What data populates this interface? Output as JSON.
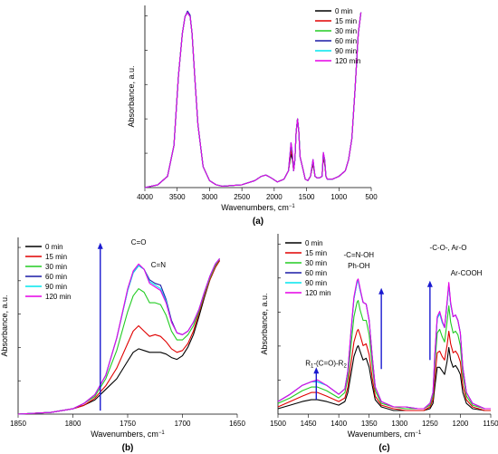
{
  "legend_labels": [
    "0 min",
    "15 min",
    "30 min",
    "60 min",
    "90 min",
    "120 min"
  ],
  "colors": {
    "0 min": "#000000",
    "15 min": "#e00000",
    "30 min": "#22cc22",
    "60 min": "#1a1aa6",
    "90 min": "#00e5ee",
    "120 min": "#e600e6",
    "arrow": "#1a1ad0"
  },
  "chart_data": [
    {
      "id": "a",
      "type": "line",
      "caption": "(a)",
      "xlabel": "Wavenumbers, cm",
      "xlabel_sup": "−1",
      "ylabel": "Absorbance, a.u.",
      "xlim": [
        4000,
        500
      ],
      "ylim": [
        0,
        1.3
      ],
      "xticks": [
        4000,
        3500,
        3000,
        2500,
        2000,
        1500,
        1000,
        500
      ],
      "legend_position": "top-right",
      "x": [
        4000,
        3800,
        3650,
        3550,
        3480,
        3420,
        3380,
        3340,
        3300,
        3270,
        3230,
        3180,
        3100,
        3000,
        2900,
        2800,
        2500,
        2300,
        2200,
        2130,
        2050,
        1950,
        1850,
        1780,
        1740,
        1720,
        1700,
        1680,
        1660,
        1640,
        1620,
        1600,
        1560,
        1520,
        1480,
        1440,
        1400,
        1370,
        1340,
        1300,
        1260,
        1240,
        1220,
        1200,
        1180,
        1100,
        1000,
        900,
        850,
        800,
        750,
        700,
        660
      ],
      "series": [
        {
          "name": "0 min",
          "values": [
            0.0,
            0.02,
            0.08,
            0.3,
            0.8,
            1.1,
            1.22,
            1.25,
            1.22,
            1.1,
            0.8,
            0.45,
            0.15,
            0.05,
            0.02,
            0.01,
            0.02,
            0.05,
            0.08,
            0.09,
            0.07,
            0.04,
            0.06,
            0.12,
            0.24,
            0.2,
            0.12,
            0.2,
            0.4,
            0.49,
            0.4,
            0.22,
            0.14,
            0.06,
            0.05,
            0.08,
            0.17,
            0.08,
            0.07,
            0.07,
            0.08,
            0.22,
            0.17,
            0.08,
            0.06,
            0.06,
            0.08,
            0.12,
            0.2,
            0.35,
            0.7,
            1.1,
            1.25
          ]
        },
        {
          "name": "15 min",
          "values": [
            0.0,
            0.02,
            0.08,
            0.3,
            0.8,
            1.1,
            1.22,
            1.25,
            1.22,
            1.1,
            0.8,
            0.45,
            0.15,
            0.05,
            0.02,
            0.01,
            0.02,
            0.05,
            0.08,
            0.09,
            0.07,
            0.04,
            0.06,
            0.12,
            0.27,
            0.22,
            0.12,
            0.2,
            0.4,
            0.49,
            0.4,
            0.22,
            0.14,
            0.06,
            0.05,
            0.08,
            0.18,
            0.08,
            0.07,
            0.07,
            0.08,
            0.23,
            0.18,
            0.08,
            0.06,
            0.06,
            0.08,
            0.12,
            0.2,
            0.35,
            0.7,
            1.1,
            1.25
          ]
        },
        {
          "name": "30 min",
          "values": [
            0.0,
            0.02,
            0.08,
            0.3,
            0.8,
            1.1,
            1.22,
            1.25,
            1.22,
            1.1,
            0.8,
            0.45,
            0.15,
            0.05,
            0.02,
            0.01,
            0.02,
            0.05,
            0.08,
            0.09,
            0.07,
            0.04,
            0.06,
            0.12,
            0.3,
            0.24,
            0.12,
            0.2,
            0.4,
            0.49,
            0.4,
            0.22,
            0.14,
            0.06,
            0.05,
            0.08,
            0.19,
            0.08,
            0.07,
            0.07,
            0.08,
            0.24,
            0.19,
            0.08,
            0.06,
            0.06,
            0.08,
            0.12,
            0.2,
            0.35,
            0.7,
            1.1,
            1.25
          ]
        },
        {
          "name": "60 min",
          "values": [
            0.0,
            0.02,
            0.08,
            0.3,
            0.8,
            1.1,
            1.22,
            1.26,
            1.23,
            1.1,
            0.8,
            0.45,
            0.15,
            0.05,
            0.02,
            0.01,
            0.02,
            0.05,
            0.08,
            0.09,
            0.07,
            0.04,
            0.06,
            0.12,
            0.32,
            0.25,
            0.12,
            0.2,
            0.4,
            0.49,
            0.4,
            0.22,
            0.14,
            0.06,
            0.05,
            0.08,
            0.2,
            0.08,
            0.07,
            0.07,
            0.08,
            0.25,
            0.2,
            0.08,
            0.06,
            0.06,
            0.08,
            0.12,
            0.2,
            0.35,
            0.7,
            1.1,
            1.25
          ]
        },
        {
          "name": "90 min",
          "values": [
            0.0,
            0.02,
            0.08,
            0.3,
            0.8,
            1.1,
            1.22,
            1.25,
            1.22,
            1.1,
            0.8,
            0.45,
            0.15,
            0.05,
            0.02,
            0.01,
            0.02,
            0.05,
            0.08,
            0.09,
            0.07,
            0.04,
            0.06,
            0.12,
            0.32,
            0.25,
            0.12,
            0.2,
            0.4,
            0.49,
            0.4,
            0.22,
            0.14,
            0.06,
            0.05,
            0.08,
            0.2,
            0.08,
            0.07,
            0.07,
            0.08,
            0.25,
            0.2,
            0.08,
            0.06,
            0.06,
            0.08,
            0.12,
            0.2,
            0.35,
            0.7,
            1.1,
            1.25
          ]
        },
        {
          "name": "120 min",
          "values": [
            0.0,
            0.02,
            0.08,
            0.3,
            0.8,
            1.1,
            1.22,
            1.25,
            1.22,
            1.1,
            0.8,
            0.45,
            0.15,
            0.05,
            0.02,
            0.01,
            0.02,
            0.05,
            0.08,
            0.09,
            0.07,
            0.04,
            0.06,
            0.12,
            0.32,
            0.25,
            0.12,
            0.2,
            0.4,
            0.49,
            0.4,
            0.22,
            0.14,
            0.06,
            0.05,
            0.08,
            0.2,
            0.08,
            0.07,
            0.07,
            0.08,
            0.25,
            0.2,
            0.08,
            0.06,
            0.06,
            0.08,
            0.12,
            0.2,
            0.35,
            0.7,
            1.1,
            1.25
          ]
        }
      ]
    },
    {
      "id": "b",
      "type": "line",
      "caption": "(b)",
      "xlabel": "Wavenumbers, cm",
      "xlabel_sup": "−1",
      "ylabel": "Absorbance, a.u.",
      "xlim": [
        1850,
        1650
      ],
      "ylim": [
        0,
        1.0
      ],
      "xticks": [
        1850,
        1800,
        1750,
        1700,
        1650
      ],
      "legend_position": "top-left",
      "annotations": [
        {
          "text": "C=O",
          "x": 1740,
          "y": 0.96
        },
        {
          "text": "C=N",
          "x": 1722,
          "y": 0.83
        }
      ],
      "arrow": {
        "x": 1775,
        "y_from": 0.02,
        "y_to": 0.96
      },
      "x": [
        1850,
        1820,
        1800,
        1790,
        1780,
        1770,
        1760,
        1750,
        1745,
        1740,
        1735,
        1730,
        1725,
        1720,
        1715,
        1710,
        1705,
        1700,
        1695,
        1690,
        1685,
        1680,
        1675,
        1670,
        1666
      ],
      "series": [
        {
          "name": "0 min",
          "values": [
            0.0,
            0.01,
            0.03,
            0.05,
            0.08,
            0.14,
            0.2,
            0.3,
            0.35,
            0.37,
            0.36,
            0.35,
            0.35,
            0.35,
            0.34,
            0.32,
            0.31,
            0.33,
            0.38,
            0.45,
            0.55,
            0.66,
            0.76,
            0.83,
            0.87
          ]
        },
        {
          "name": "15 min",
          "values": [
            0.0,
            0.01,
            0.03,
            0.05,
            0.09,
            0.16,
            0.26,
            0.4,
            0.47,
            0.5,
            0.47,
            0.44,
            0.45,
            0.44,
            0.41,
            0.37,
            0.35,
            0.36,
            0.4,
            0.47,
            0.57,
            0.67,
            0.76,
            0.83,
            0.87
          ]
        },
        {
          "name": "30 min",
          "values": [
            0.0,
            0.01,
            0.03,
            0.06,
            0.1,
            0.2,
            0.36,
            0.58,
            0.67,
            0.71,
            0.69,
            0.63,
            0.63,
            0.62,
            0.56,
            0.47,
            0.42,
            0.42,
            0.45,
            0.5,
            0.58,
            0.68,
            0.77,
            0.84,
            0.88
          ]
        },
        {
          "name": "60 min",
          "values": [
            0.0,
            0.01,
            0.03,
            0.06,
            0.11,
            0.22,
            0.43,
            0.7,
            0.8,
            0.84,
            0.82,
            0.76,
            0.74,
            0.73,
            0.65,
            0.53,
            0.46,
            0.45,
            0.47,
            0.52,
            0.59,
            0.69,
            0.78,
            0.85,
            0.88
          ]
        },
        {
          "name": "90 min",
          "values": [
            0.0,
            0.01,
            0.03,
            0.06,
            0.11,
            0.22,
            0.43,
            0.7,
            0.8,
            0.84,
            0.82,
            0.75,
            0.73,
            0.71,
            0.64,
            0.52,
            0.46,
            0.45,
            0.47,
            0.52,
            0.59,
            0.69,
            0.78,
            0.85,
            0.88
          ]
        },
        {
          "name": "120 min",
          "values": [
            0.0,
            0.01,
            0.03,
            0.06,
            0.11,
            0.22,
            0.43,
            0.71,
            0.81,
            0.85,
            0.82,
            0.74,
            0.72,
            0.7,
            0.63,
            0.52,
            0.46,
            0.45,
            0.47,
            0.52,
            0.59,
            0.69,
            0.78,
            0.85,
            0.88
          ]
        }
      ]
    },
    {
      "id": "c",
      "type": "line",
      "caption": "(c)",
      "xlabel": "Wavenumbers, cm",
      "xlabel_sup": "−1",
      "ylabel": "Absorbance, a.u.",
      "xlim": [
        1500,
        1150
      ],
      "ylim": [
        0,
        1.0
      ],
      "xticks": [
        1500,
        1450,
        1400,
        1350,
        1300,
        1250,
        1200,
        1150
      ],
      "legend_position": "top-left",
      "annotations": [
        {
          "text": "-C=N-OH",
          "x": 1367,
          "y": 0.87
        },
        {
          "text": "Ph-OH",
          "x": 1367,
          "y": 0.81
        },
        {
          "text": "-C-O-, Ar-O",
          "x": 1220,
          "y": 0.91
        },
        {
          "text": "Ar-COOH",
          "x": 1190,
          "y": 0.77
        },
        {
          "text": "R",
          "x": 1455,
          "y": 0.27,
          "formula": true
        }
      ],
      "arrows": [
        {
          "x": 1437,
          "y_from": 0.08,
          "y_to": 0.25
        },
        {
          "x": 1330,
          "y_from": 0.25,
          "y_to": 0.69
        },
        {
          "x": 1250,
          "y_from": 0.3,
          "y_to": 0.73
        }
      ],
      "x": [
        1500,
        1480,
        1460,
        1445,
        1435,
        1420,
        1400,
        1390,
        1385,
        1380,
        1375,
        1370,
        1368,
        1365,
        1360,
        1355,
        1350,
        1345,
        1340,
        1330,
        1310,
        1290,
        1270,
        1260,
        1250,
        1245,
        1242,
        1238,
        1234,
        1230,
        1226,
        1222,
        1219,
        1216,
        1212,
        1208,
        1204,
        1200,
        1196,
        1190,
        1180,
        1160,
        1150
      ],
      "series": [
        {
          "name": "0 min",
          "values": [
            0.03,
            0.05,
            0.07,
            0.08,
            0.08,
            0.07,
            0.05,
            0.07,
            0.12,
            0.22,
            0.32,
            0.37,
            0.38,
            0.35,
            0.3,
            0.31,
            0.26,
            0.16,
            0.08,
            0.04,
            0.02,
            0.02,
            0.02,
            0.02,
            0.03,
            0.06,
            0.15,
            0.26,
            0.26,
            0.24,
            0.22,
            0.29,
            0.37,
            0.3,
            0.26,
            0.27,
            0.25,
            0.22,
            0.12,
            0.06,
            0.03,
            0.02,
            0.02
          ]
        },
        {
          "name": "15 min",
          "values": [
            0.04,
            0.07,
            0.1,
            0.12,
            0.12,
            0.1,
            0.07,
            0.09,
            0.15,
            0.28,
            0.4,
            0.46,
            0.47,
            0.44,
            0.38,
            0.39,
            0.33,
            0.2,
            0.1,
            0.05,
            0.03,
            0.02,
            0.02,
            0.02,
            0.04,
            0.08,
            0.2,
            0.34,
            0.35,
            0.32,
            0.3,
            0.38,
            0.46,
            0.39,
            0.34,
            0.35,
            0.33,
            0.29,
            0.16,
            0.08,
            0.04,
            0.02,
            0.02
          ]
        },
        {
          "name": "30 min",
          "values": [
            0.06,
            0.09,
            0.13,
            0.15,
            0.15,
            0.13,
            0.09,
            0.12,
            0.2,
            0.38,
            0.54,
            0.62,
            0.63,
            0.58,
            0.52,
            0.52,
            0.44,
            0.27,
            0.13,
            0.06,
            0.04,
            0.03,
            0.03,
            0.03,
            0.05,
            0.1,
            0.27,
            0.45,
            0.47,
            0.43,
            0.4,
            0.51,
            0.6,
            0.51,
            0.45,
            0.46,
            0.44,
            0.38,
            0.22,
            0.1,
            0.05,
            0.03,
            0.03
          ]
        },
        {
          "name": "60 min",
          "values": [
            0.07,
            0.11,
            0.16,
            0.18,
            0.18,
            0.16,
            0.11,
            0.14,
            0.24,
            0.45,
            0.64,
            0.73,
            0.74,
            0.69,
            0.62,
            0.61,
            0.52,
            0.32,
            0.15,
            0.07,
            0.04,
            0.04,
            0.03,
            0.03,
            0.06,
            0.12,
            0.32,
            0.53,
            0.56,
            0.51,
            0.48,
            0.61,
            0.72,
            0.61,
            0.54,
            0.55,
            0.52,
            0.45,
            0.26,
            0.12,
            0.06,
            0.03,
            0.03
          ]
        },
        {
          "name": "90 min",
          "values": [
            0.07,
            0.11,
            0.16,
            0.18,
            0.18,
            0.16,
            0.11,
            0.14,
            0.24,
            0.45,
            0.64,
            0.73,
            0.74,
            0.69,
            0.62,
            0.61,
            0.52,
            0.32,
            0.15,
            0.07,
            0.04,
            0.04,
            0.03,
            0.03,
            0.06,
            0.12,
            0.32,
            0.53,
            0.56,
            0.51,
            0.48,
            0.61,
            0.72,
            0.61,
            0.54,
            0.55,
            0.52,
            0.45,
            0.26,
            0.12,
            0.06,
            0.03,
            0.03
          ]
        },
        {
          "name": "120 min",
          "values": [
            0.07,
            0.11,
            0.16,
            0.18,
            0.19,
            0.16,
            0.11,
            0.14,
            0.24,
            0.46,
            0.65,
            0.74,
            0.75,
            0.7,
            0.62,
            0.61,
            0.52,
            0.32,
            0.15,
            0.07,
            0.04,
            0.04,
            0.03,
            0.03,
            0.06,
            0.12,
            0.33,
            0.54,
            0.57,
            0.52,
            0.48,
            0.62,
            0.73,
            0.62,
            0.54,
            0.55,
            0.52,
            0.45,
            0.26,
            0.12,
            0.06,
            0.03,
            0.03
          ]
        }
      ]
    }
  ]
}
